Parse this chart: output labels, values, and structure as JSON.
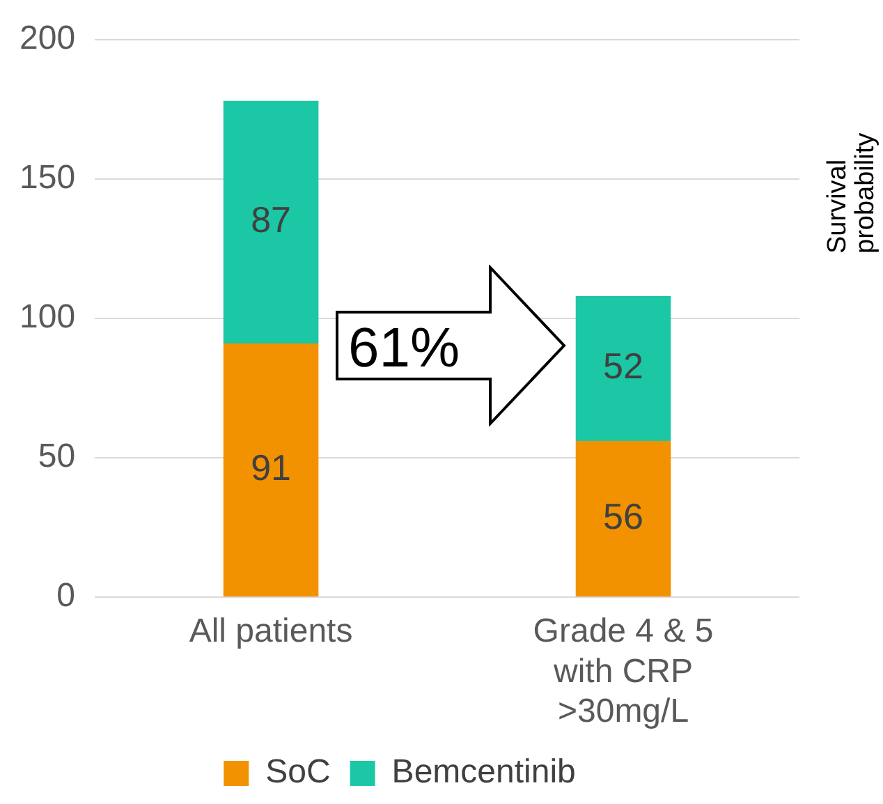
{
  "chart_data": {
    "type": "bar",
    "stacked": true,
    "categories": [
      "All patients",
      "Grade 4 & 5 with CRP >30mg/L"
    ],
    "series": [
      {
        "name": "SoC",
        "color": "#f39200",
        "values": [
          91,
          56
        ]
      },
      {
        "name": "Bemcentinib",
        "color": "#1bc7a4",
        "values": [
          87,
          52
        ]
      }
    ],
    "ylim": [
      0,
      200
    ],
    "yticks": [
      0,
      50,
      100,
      150,
      200
    ],
    "grid": "y",
    "legend": "bottom",
    "data_labels": true,
    "annotations": [
      "61%",
      "Survival probability"
    ]
  }
}
